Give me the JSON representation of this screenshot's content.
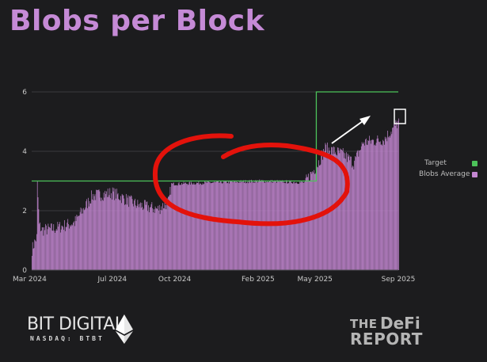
{
  "title": "Blobs per Block",
  "colors": {
    "background": "#1c1c1e",
    "title": "#c58ad6",
    "bars": "#c487d2",
    "target": "#4cc25a",
    "annotation": "#e3120b",
    "arrow": "#ffffff"
  },
  "legend": [
    {
      "label": "Target",
      "color": "#4cc25a"
    },
    {
      "label": "Blobs Average",
      "color": "#c487d2"
    }
  ],
  "branding": {
    "company": "BIT DIGITAL",
    "exchange": "NASDAQ: BTBT",
    "logo_icon": "ethereum-diamond-icon",
    "publisher_the": "THE",
    "publisher_name": "DeFi",
    "publisher_report": "REPORT"
  },
  "chart_data": {
    "type": "bar",
    "title": "Blobs per Block",
    "xlabel": "",
    "ylabel": "",
    "x_ticks": [
      "Mar 2024",
      "Jul 2024",
      "Oct 2024",
      "Feb 2025",
      "May 2025",
      "Sep 2025"
    ],
    "y_ticks": [
      "0",
      "2",
      "4",
      "6"
    ],
    "ylim": [
      0,
      6.2
    ],
    "grid": true,
    "legend_position": "right",
    "series": [
      {
        "name": "Blobs Average",
        "type": "bar",
        "start": "2024-03-13",
        "end": "2025-09-05",
        "anchor_dates": [
          "2024-03-13",
          "2024-03-20",
          "2024-03-21",
          "2024-03-24",
          "2024-03-28",
          "2024-04-15",
          "2024-05-15",
          "2024-06-10",
          "2024-07-10",
          "2024-08-15",
          "2024-09-15",
          "2024-10-01",
          "2024-10-05",
          "2025-02-15",
          "2025-04-20",
          "2025-05-07",
          "2025-05-20",
          "2025-06-15",
          "2025-07-01",
          "2025-07-15",
          "2025-08-15",
          "2025-09-05"
        ],
        "anchor_values": [
          0.7,
          1.1,
          2.9,
          1.5,
          1.35,
          1.4,
          1.6,
          2.5,
          2.6,
          2.2,
          2.05,
          2.3,
          2.9,
          3.0,
          2.95,
          3.5,
          4.1,
          3.9,
          3.6,
          4.3,
          4.4,
          5.0
        ]
      },
      {
        "name": "Target",
        "type": "step-line",
        "dates": [
          "2024-03-13",
          "2025-05-07",
          "2025-09-05"
        ],
        "values": [
          3,
          6,
          6
        ]
      }
    ],
    "annotations": [
      {
        "type": "freehand-ellipse",
        "color": "red",
        "around": "Oct 2024 – May 2025 plateau at 3"
      },
      {
        "type": "arrow",
        "color": "white",
        "direction": "up-right",
        "near": "Jun–Aug 2025"
      },
      {
        "type": "box",
        "color": "white",
        "around": "latest bar, Sep 2025"
      }
    ]
  }
}
